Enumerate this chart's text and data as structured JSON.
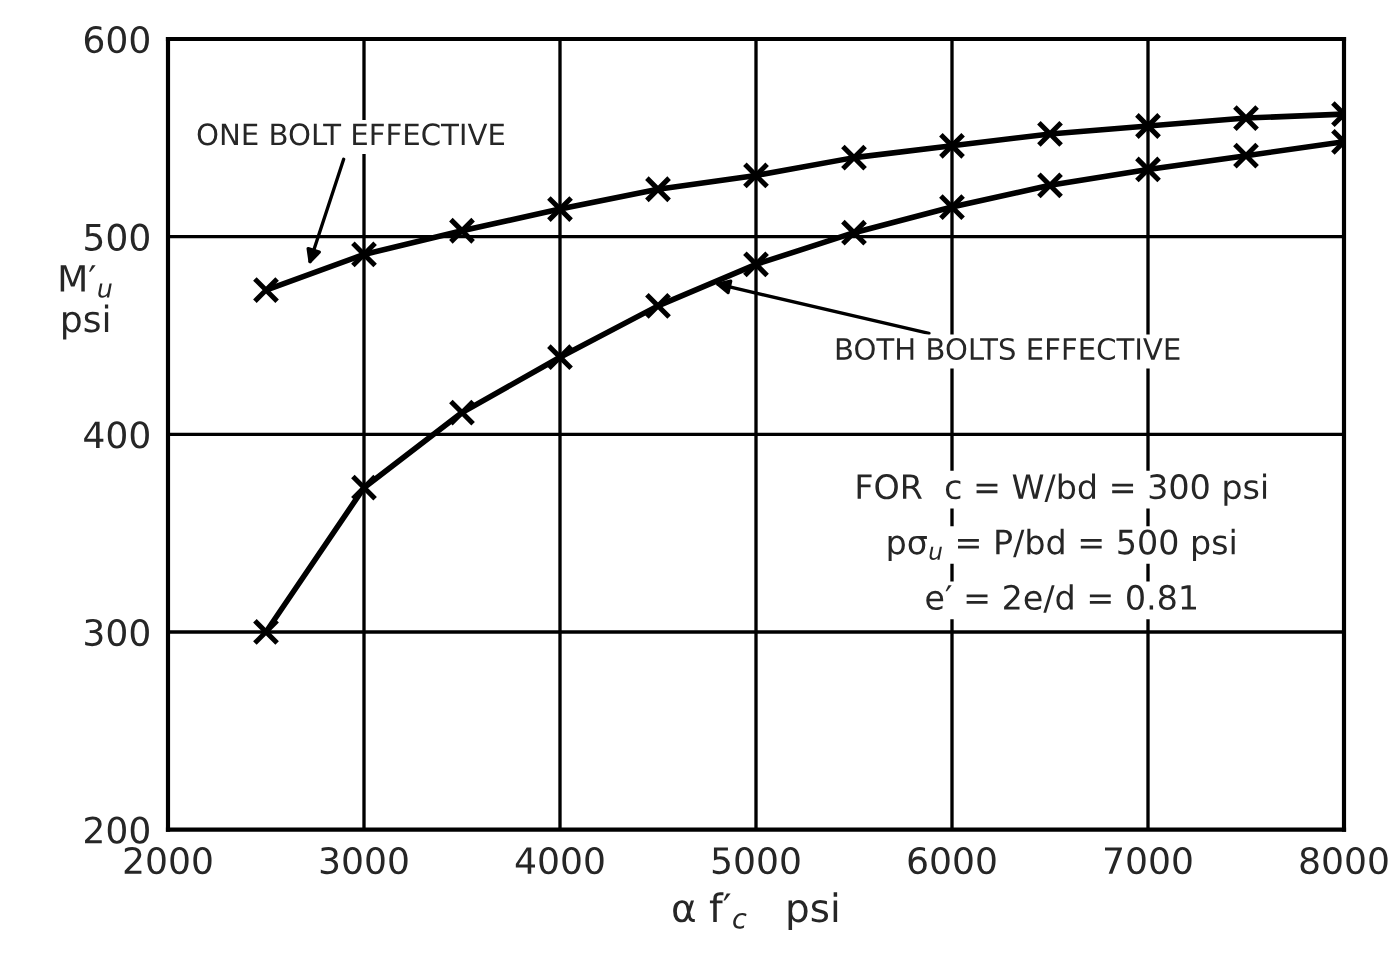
{
  "chart_data": {
    "type": "line",
    "xlabel": "α f′$_{c}$   psi",
    "ylabel": "M′$_{u}$\npsi",
    "x": [
      2500,
      3000,
      3500,
      4000,
      4500,
      5000,
      5500,
      6000,
      6500,
      7000,
      7500,
      8000
    ],
    "series": [
      {
        "color": "#000000",
        "values": [
          473,
          491,
          503,
          514,
          524,
          531,
          540,
          546,
          552,
          556,
          560,
          562
        ]
      },
      {
        "color": "#000000",
        "values": [
          300,
          373,
          411,
          439,
          465,
          486,
          502,
          515,
          526,
          534,
          541,
          548
        ]
      }
    ],
    "xlim": [
      2000,
      8000
    ],
    "xticks": [
      2000,
      3000,
      4000,
      5000,
      6000,
      7000,
      8000
    ],
    "ylim": [
      200,
      600
    ],
    "yticks": [
      200,
      300,
      400,
      500,
      600
    ],
    "grid": true,
    "marker": "cross",
    "line_style": "solid",
    "legend": false,
    "annotations": [
      {
        "text": "ONE BOLT EFFECTIVE",
        "x": 2710,
        "y": 483
      },
      {
        "text": "BOTH BOLTS EFFECTIVE",
        "x": 4760,
        "y": 477
      },
      "FOR  c = W/bd = 300 psi",
      "pσ$_{u}$ = P/bd = 500 psi",
      "e′ = 2e/d = 0.81"
    ]
  }
}
